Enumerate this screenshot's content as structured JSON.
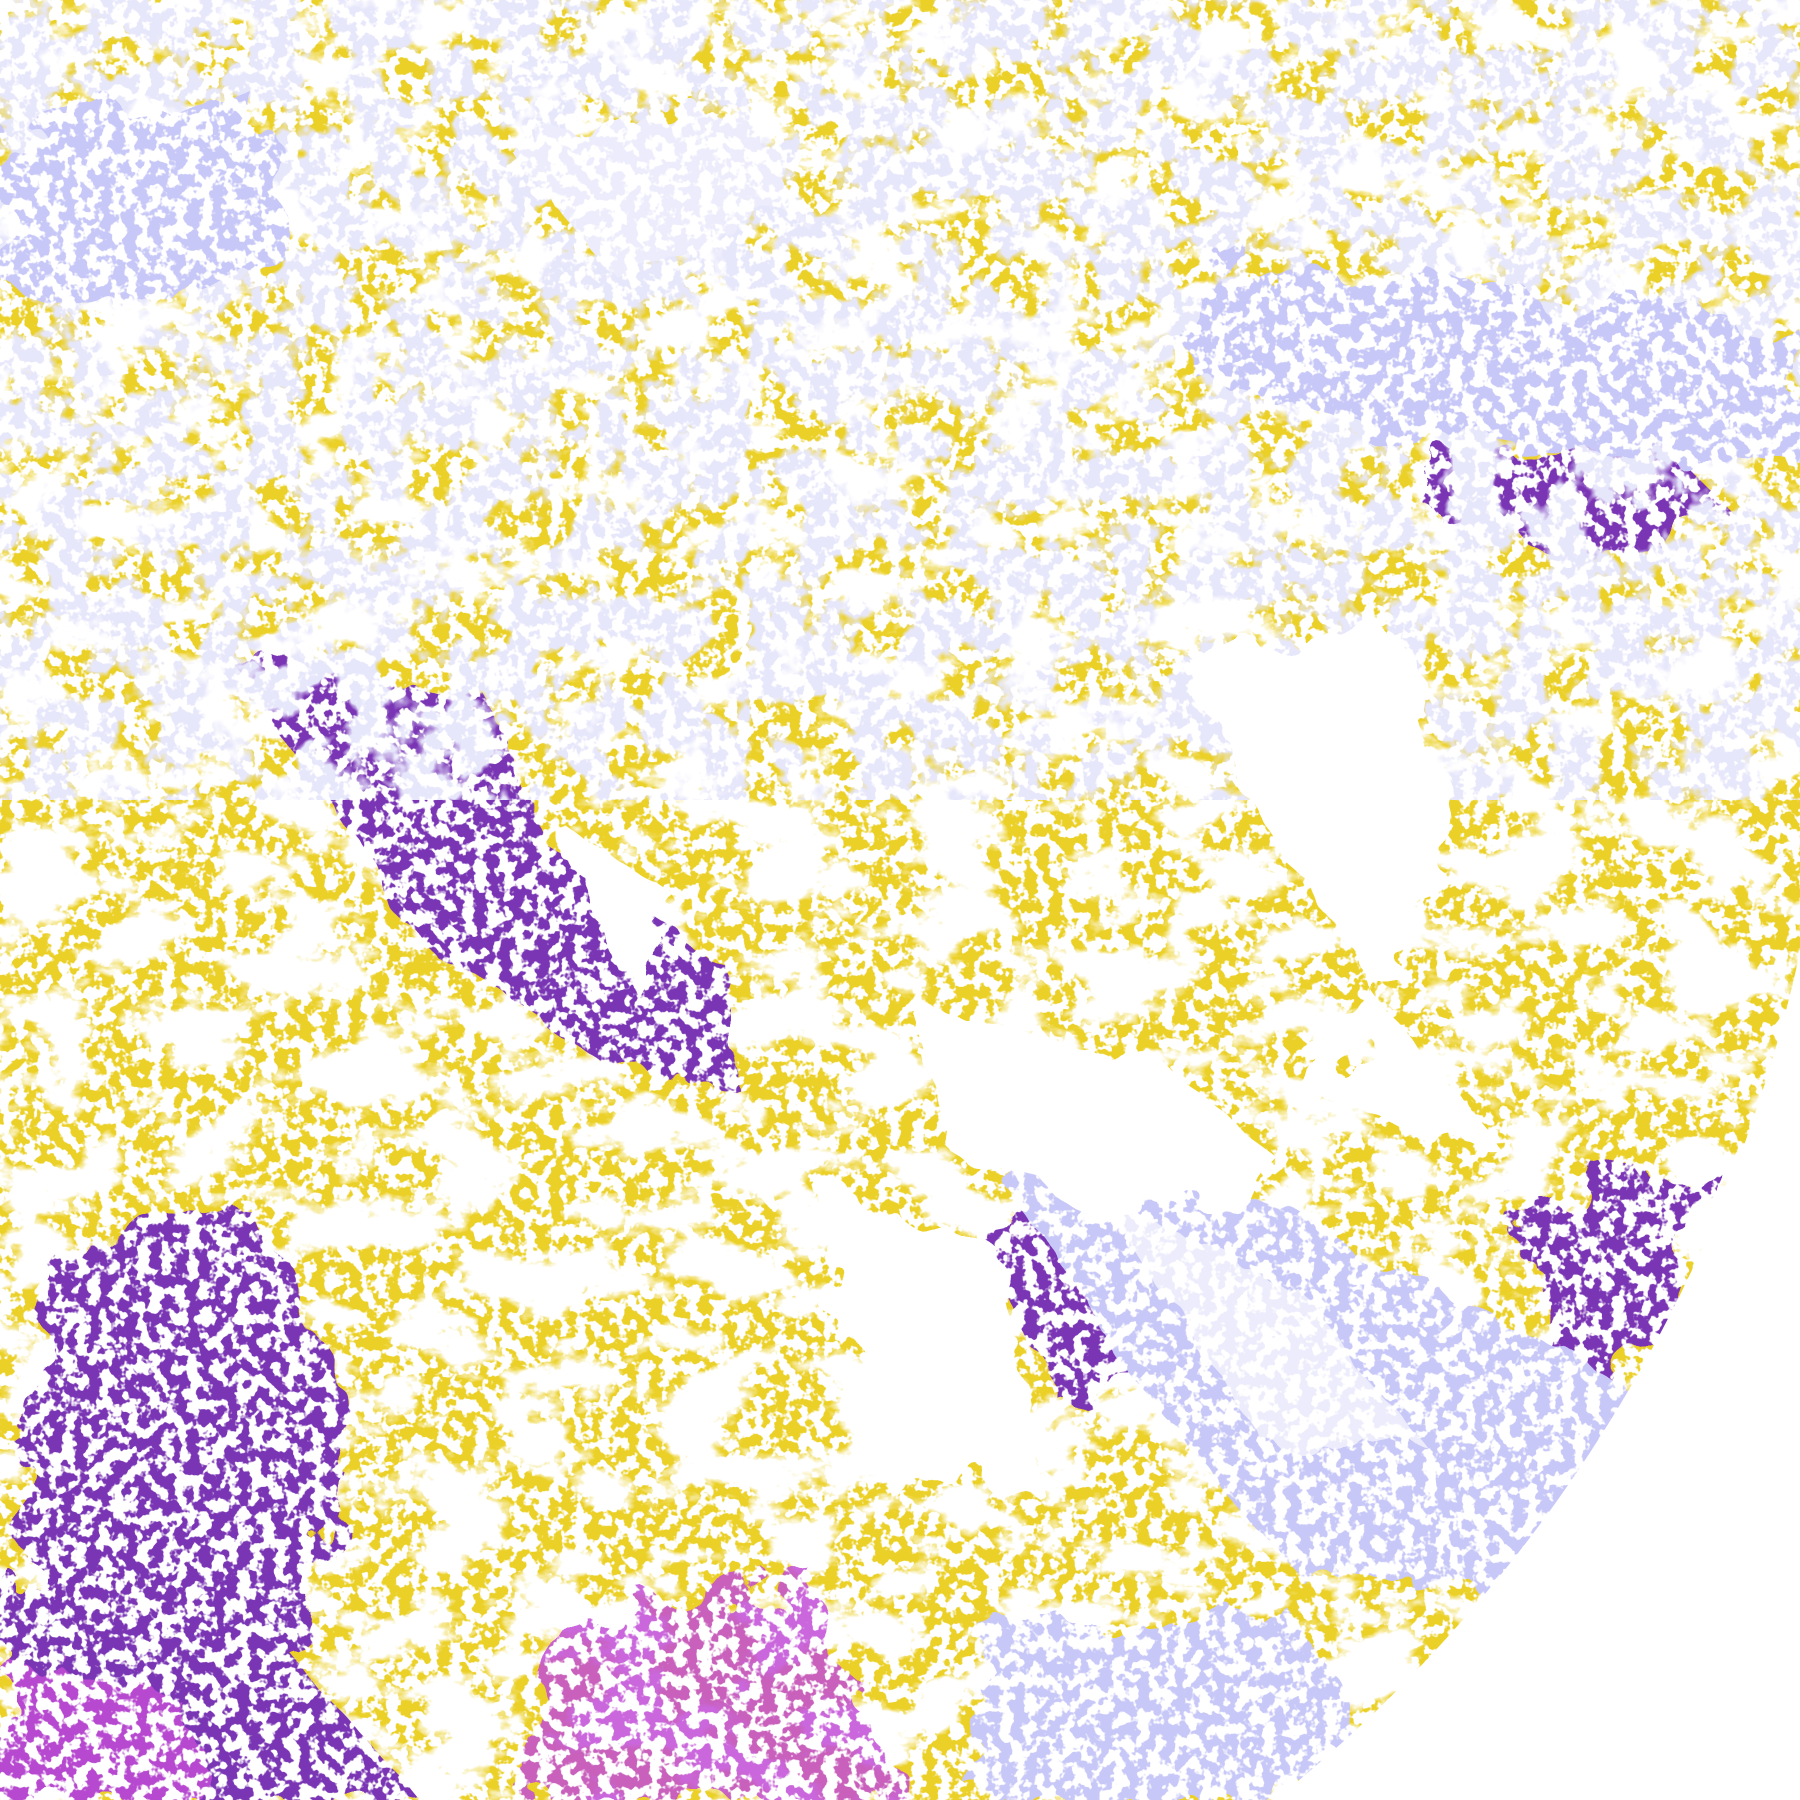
{
  "image": {
    "kind": "false-color satellite imagery",
    "palette": {
      "clear": "#ffffff",
      "gold": "#d4a106",
      "purple": "#7a34b4",
      "magenta": "#c24ed6",
      "lavender": "#c8c8f8",
      "pale": "#ececfc",
      "gray": "#a0a0a8",
      "space": "#ffffff"
    }
  }
}
